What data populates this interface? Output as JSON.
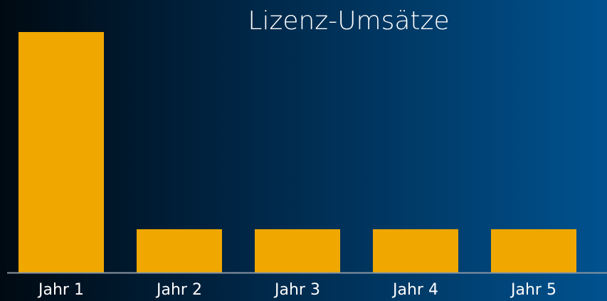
{
  "chart_data": {
    "type": "bar",
    "title": "Lizenz-Umsätze",
    "categories": [
      "Jahr 1",
      "Jahr 2",
      "Jahr 3",
      "Jahr 4",
      "Jahr 5"
    ],
    "values": [
      100,
      18,
      18,
      18,
      18
    ],
    "color": "#f0a800",
    "ylim": [
      0,
      100
    ],
    "grid": false
  }
}
